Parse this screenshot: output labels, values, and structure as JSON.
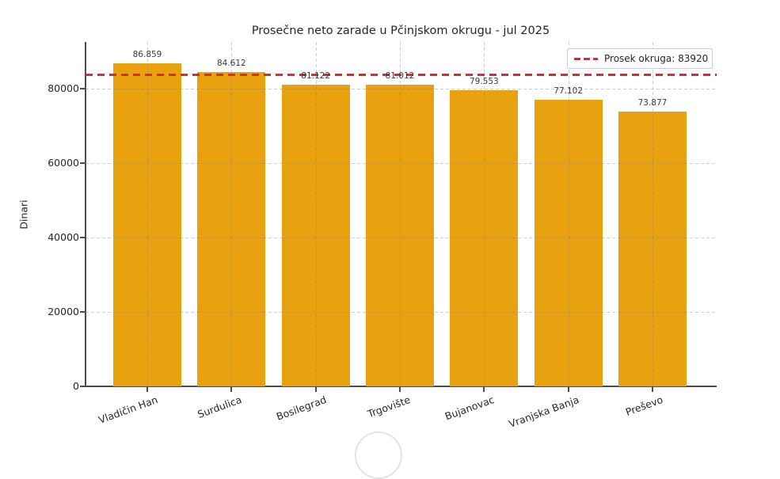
{
  "chart_data": {
    "type": "bar",
    "title": "Prosečne neto zarade u Pčinjskom okrugu - jul 2025",
    "xlabel": "",
    "ylabel": "Dinari",
    "categories": [
      "Vladičin Han",
      "Surdulica",
      "Bosilegrad",
      "Trgovište",
      "Bujanovac",
      "Vranjska Banja",
      "Preševo"
    ],
    "values": [
      86859,
      84612,
      81122,
      81012,
      79553,
      77102,
      73877
    ],
    "value_labels": [
      "86.859",
      "84.612",
      "81.122",
      "81.012",
      "79.553",
      "77.102",
      "73.877"
    ],
    "bar_color": "#e8a20f",
    "yticks": [
      0,
      20000,
      40000,
      60000,
      80000
    ],
    "ytick_labels": [
      "0",
      "20000",
      "40000",
      "60000",
      "80000"
    ],
    "ylim": [
      0,
      92600
    ],
    "grid": true,
    "grid_style": "dashed",
    "average_line": {
      "value": 83920,
      "label": "Prosek okruga: 83920",
      "color": "#e12727",
      "style": "dashed"
    },
    "legend_position": "upper right"
  }
}
